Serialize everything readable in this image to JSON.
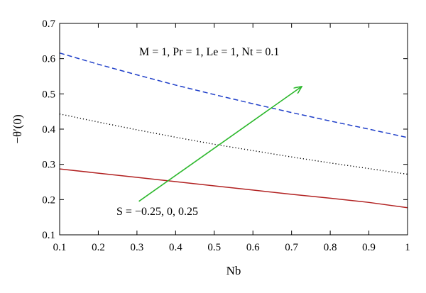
{
  "chart_data": {
    "type": "line",
    "title": "",
    "xlabel": "Nb",
    "ylabel": "−θ′(0)",
    "xlim": [
      0.1,
      1.0
    ],
    "ylim": [
      0.1,
      0.7
    ],
    "xticks": [
      0.1,
      0.2,
      0.3,
      0.4,
      0.5,
      0.6,
      0.7,
      0.8,
      0.9,
      1
    ],
    "xtick_labels": [
      "0.1",
      "0.2",
      "0.3",
      "0.4",
      "0.5",
      "0.6",
      "0.7",
      "0.8",
      "0.9",
      "1"
    ],
    "yticks": [
      0.1,
      0.2,
      0.3,
      0.4,
      0.5,
      0.6,
      0.7
    ],
    "ytick_labels": [
      "0.1",
      "0.2",
      "0.3",
      "0.4",
      "0.5",
      "0.6",
      "0.7"
    ],
    "grid": false,
    "series": [
      {
        "color": "#b22222",
        "style": "solid",
        "points": [
          [
            0.1,
            0.287
          ],
          [
            0.2,
            0.275
          ],
          [
            0.3,
            0.263
          ],
          [
            0.4,
            0.251
          ],
          [
            0.5,
            0.239
          ],
          [
            0.6,
            0.227
          ],
          [
            0.7,
            0.215
          ],
          [
            0.8,
            0.204
          ],
          [
            0.9,
            0.192
          ],
          [
            1.0,
            0.177
          ]
        ]
      },
      {
        "color": "#000000",
        "style": "dotted",
        "points": [
          [
            0.1,
            0.443
          ],
          [
            0.2,
            0.42
          ],
          [
            0.3,
            0.398
          ],
          [
            0.4,
            0.377
          ],
          [
            0.5,
            0.357
          ],
          [
            0.6,
            0.339
          ],
          [
            0.7,
            0.321
          ],
          [
            0.8,
            0.304
          ],
          [
            0.9,
            0.288
          ],
          [
            1.0,
            0.272
          ]
        ]
      },
      {
        "color": "#1f3fc9",
        "style": "dashed",
        "points": [
          [
            0.1,
            0.616
          ],
          [
            0.2,
            0.584
          ],
          [
            0.3,
            0.554
          ],
          [
            0.4,
            0.525
          ],
          [
            0.5,
            0.498
          ],
          [
            0.6,
            0.472
          ],
          [
            0.7,
            0.447
          ],
          [
            0.8,
            0.423
          ],
          [
            0.9,
            0.4
          ],
          [
            1.0,
            0.376
          ]
        ]
      }
    ],
    "arrow": {
      "color": "#2db82d",
      "from": [
        0.305,
        0.195
      ],
      "to": [
        0.725,
        0.52
      ]
    },
    "annotations": {
      "params": "M = 1, Pr = 1, Le = 1, Nt = 0.1",
      "s_values": "S = −0.25, 0, 0.25"
    }
  }
}
